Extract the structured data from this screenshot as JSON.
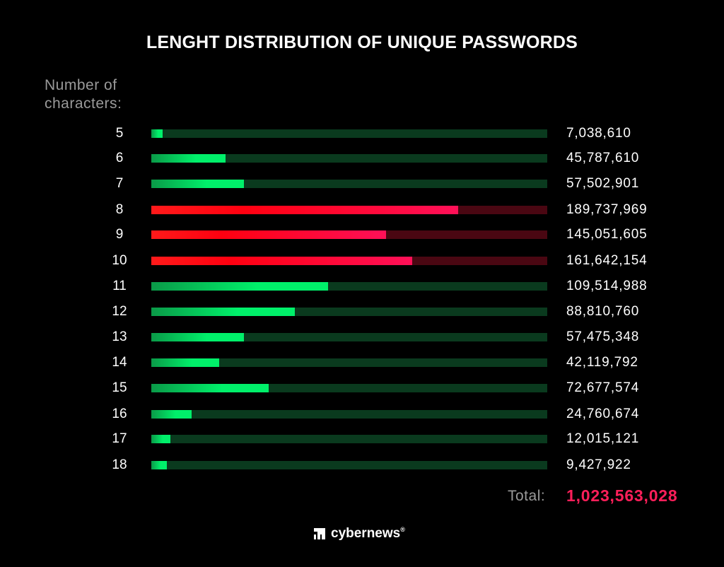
{
  "chart_data": {
    "type": "bar",
    "orientation": "horizontal",
    "title": "LENGHT DISTRIBUTION OF UNIQUE PASSWORDS",
    "ylabel_line1": "Number of",
    "ylabel_line2": "characters:",
    "xlim": [
      0,
      245000000
    ],
    "categories": [
      "5",
      "6",
      "7",
      "8",
      "9",
      "10",
      "11",
      "12",
      "13",
      "14",
      "15",
      "16",
      "17",
      "18"
    ],
    "values": [
      7038610,
      45787610,
      57502901,
      189737969,
      145051605,
      161642154,
      109514988,
      88810760,
      57475348,
      42119792,
      72677574,
      24760674,
      12015121,
      9427922
    ],
    "value_labels": [
      "7,038,610",
      "45,787,610",
      "57,502,901",
      "189,737,969",
      "145,051,605",
      "161,642,154",
      "109,514,988",
      "88,810,760",
      "57,475,348",
      "42,119,792",
      "72,677,574",
      "24,760,674",
      "12,015,121",
      "9,427,922"
    ],
    "highlight": [
      false,
      false,
      false,
      true,
      true,
      true,
      false,
      false,
      false,
      false,
      false,
      false,
      false,
      false
    ],
    "colors": {
      "green": "#00f06a",
      "green_dark": "#0a9a48",
      "green_track": "#0a3a1e",
      "red": "#ff1a1a",
      "red_end": "#ff1058",
      "red_track": "#4a0712"
    },
    "total_label": "Total:",
    "total_value": "1,023,563,028"
  },
  "brand": {
    "name": "cybernews",
    "reg": "®"
  }
}
